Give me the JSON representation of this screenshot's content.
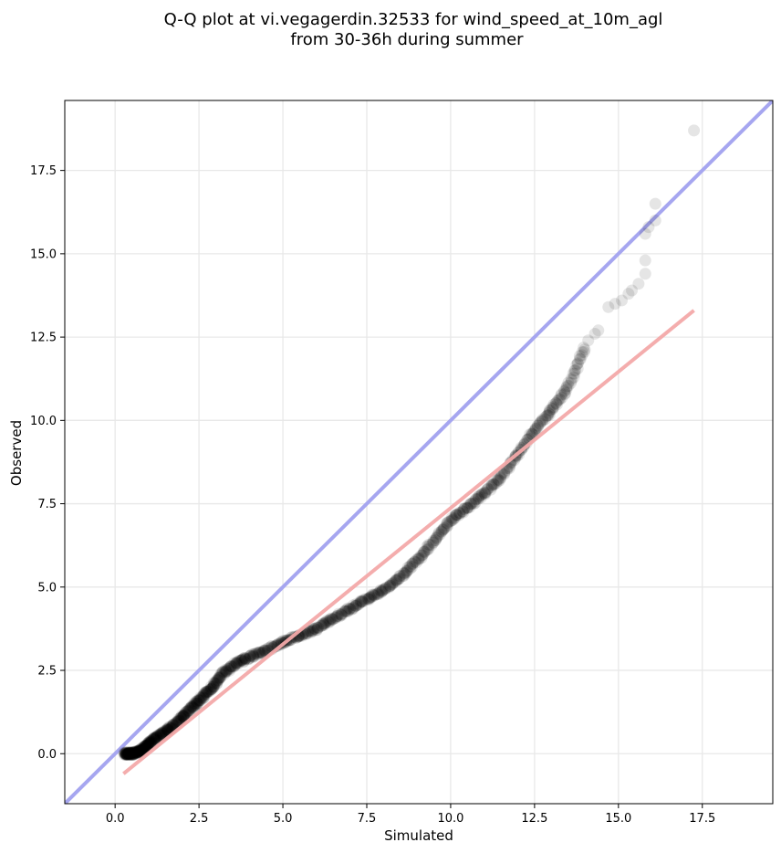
{
  "chart_data": {
    "type": "scatter",
    "title_lines": [
      "Q-Q plot at vi.vegagerdin.32533 for wind_speed_at_10m_agl",
      "from 30-36h during summer"
    ],
    "xlabel": "Simulated",
    "ylabel": "Observed",
    "xlim": [
      -1.5,
      19.6
    ],
    "ylim": [
      -1.5,
      19.6
    ],
    "xticks": [
      0.0,
      2.5,
      5.0,
      7.5,
      10.0,
      12.5,
      15.0,
      17.5
    ],
    "yticks": [
      0.0,
      2.5,
      5.0,
      7.5,
      10.0,
      12.5,
      15.0,
      17.5
    ],
    "xtick_labels": [
      "0.0",
      "2.5",
      "5.0",
      "7.5",
      "10.0",
      "12.5",
      "15.0",
      "17.5"
    ],
    "ytick_labels": [
      "0.0",
      "2.5",
      "5.0",
      "7.5",
      "10.0",
      "12.5",
      "15.0",
      "17.5"
    ],
    "grid": true,
    "colors": {
      "points": "#000000",
      "identity_line": "#a6a6f0",
      "fit_line": "#f3a9a9",
      "grid": "#e8e8e8"
    },
    "identity_line": {
      "x": [
        -1.5,
        19.6
      ],
      "y": [
        -1.5,
        19.6
      ]
    },
    "fit_line": {
      "x": [
        0.25,
        17.25
      ],
      "y": [
        -0.6,
        13.3
      ]
    },
    "knot_points": [
      [
        0.3,
        0.0
      ],
      [
        0.5,
        0.0
      ],
      [
        0.7,
        0.05
      ],
      [
        0.9,
        0.2
      ],
      [
        1.1,
        0.4
      ],
      [
        1.4,
        0.6
      ],
      [
        1.7,
        0.8
      ],
      [
        2.0,
        1.1
      ],
      [
        2.3,
        1.4
      ],
      [
        2.6,
        1.7
      ],
      [
        2.9,
        2.0
      ],
      [
        3.2,
        2.4
      ],
      [
        3.6,
        2.7
      ],
      [
        4.0,
        2.9
      ],
      [
        4.5,
        3.1
      ],
      [
        5.0,
        3.35
      ],
      [
        5.5,
        3.55
      ],
      [
        6.0,
        3.75
      ],
      [
        6.5,
        4.05
      ],
      [
        7.0,
        4.35
      ],
      [
        7.5,
        4.65
      ],
      [
        8.0,
        4.9
      ],
      [
        8.5,
        5.3
      ],
      [
        9.0,
        5.8
      ],
      [
        9.5,
        6.4
      ],
      [
        10.0,
        7.0
      ],
      [
        10.5,
        7.4
      ],
      [
        11.0,
        7.8
      ],
      [
        11.5,
        8.3
      ],
      [
        12.0,
        9.0
      ],
      [
        12.5,
        9.7
      ],
      [
        13.0,
        10.3
      ],
      [
        13.5,
        11.0
      ],
      [
        14.0,
        12.2
      ]
    ],
    "tail_points": [
      [
        14.1,
        12.4
      ],
      [
        14.3,
        12.6
      ],
      [
        14.4,
        12.7
      ],
      [
        14.7,
        13.4
      ],
      [
        14.9,
        13.5
      ],
      [
        15.1,
        13.6
      ],
      [
        15.3,
        13.8
      ],
      [
        15.4,
        13.9
      ],
      [
        15.6,
        14.1
      ],
      [
        15.8,
        14.4
      ],
      [
        15.8,
        14.8
      ],
      [
        15.8,
        15.6
      ],
      [
        15.9,
        15.8
      ],
      [
        16.1,
        16.0
      ],
      [
        16.1,
        16.5
      ],
      [
        17.25,
        18.7
      ]
    ],
    "n_points": 900
  }
}
